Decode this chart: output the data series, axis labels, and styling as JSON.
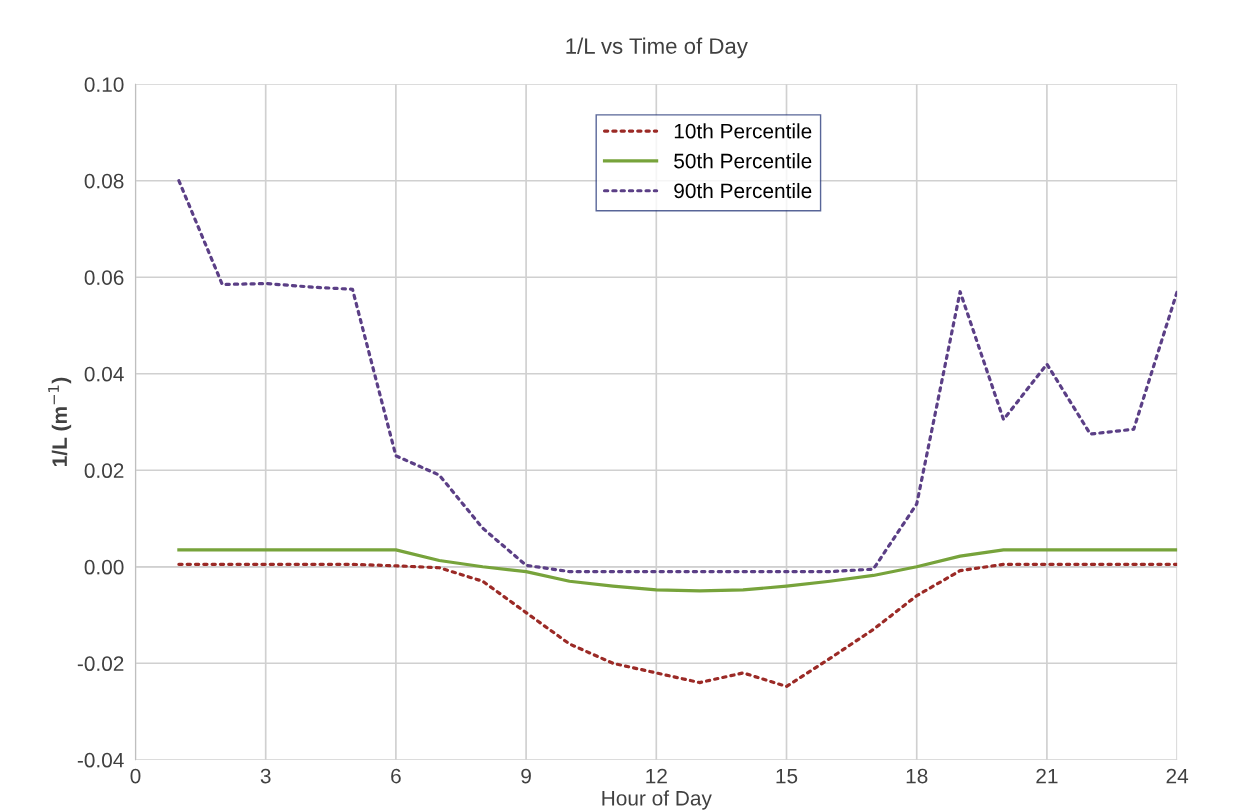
{
  "chart_data": {
    "type": "line",
    "title": "1/L vs Time of Day",
    "xlabel": "Hour of Day",
    "ylabel": "1/L (m$^{−1}$)",
    "x": [
      1,
      2,
      3,
      4,
      5,
      6,
      7,
      8,
      9,
      10,
      11,
      12,
      13,
      14,
      15,
      16,
      17,
      18,
      19,
      20,
      21,
      22,
      23,
      24
    ],
    "series": [
      {
        "name": "10th Percentile",
        "color": "#9b2a26",
        "line_style": "dotted",
        "values": [
          0.0005,
          0.0005,
          0.0005,
          0.0005,
          0.0005,
          0.0002,
          -0.0002,
          -0.003,
          -0.0095,
          -0.016,
          -0.02,
          -0.022,
          -0.024,
          -0.022,
          -0.0248,
          -0.019,
          -0.013,
          -0.006,
          -0.0008,
          0.0005,
          0.0005,
          0.0005,
          0.0005,
          0.0005
        ]
      },
      {
        "name": "50th Percentile",
        "color": "#77a33b",
        "line_style": "solid",
        "values": [
          0.0035,
          0.0035,
          0.0035,
          0.0035,
          0.0035,
          0.0035,
          0.0013,
          0.0,
          -0.001,
          -0.003,
          -0.004,
          -0.0048,
          -0.005,
          -0.0048,
          -0.004,
          -0.003,
          -0.0018,
          0.0,
          0.0022,
          0.0035,
          0.0035,
          0.0035,
          0.0035,
          0.0035
        ]
      },
      {
        "name": "90th Percentile",
        "color": "#5b3f86",
        "line_style": "dotted",
        "values": [
          0.08,
          0.0585,
          0.0587,
          0.058,
          0.0575,
          0.023,
          0.019,
          0.008,
          0.0003,
          -0.001,
          -0.001,
          -0.001,
          -0.001,
          -0.001,
          -0.001,
          -0.001,
          -0.0005,
          0.013,
          0.057,
          0.0305,
          0.042,
          0.0275,
          0.0285,
          0.057
        ]
      }
    ],
    "xlim": [
      0,
      24
    ],
    "xticks": [
      0,
      3,
      6,
      9,
      12,
      15,
      18,
      21,
      24
    ],
    "ylim": [
      -0.04,
      0.1
    ],
    "yticks": [
      {
        "value": -0.04,
        "label": "-0.04"
      },
      {
        "value": -0.02,
        "label": "-0.02"
      },
      {
        "value": 0,
        "label": "0.00"
      },
      {
        "value": 0.02,
        "label": "0.02"
      },
      {
        "value": 0.04,
        "label": "0.04"
      },
      {
        "value": 0.06,
        "label": "0.06"
      },
      {
        "value": 0.08,
        "label": "0.08"
      },
      {
        "value": 0.1,
        "label": "0.10"
      }
    ],
    "grid": true,
    "legend": "top center",
    "marker": "none"
  }
}
